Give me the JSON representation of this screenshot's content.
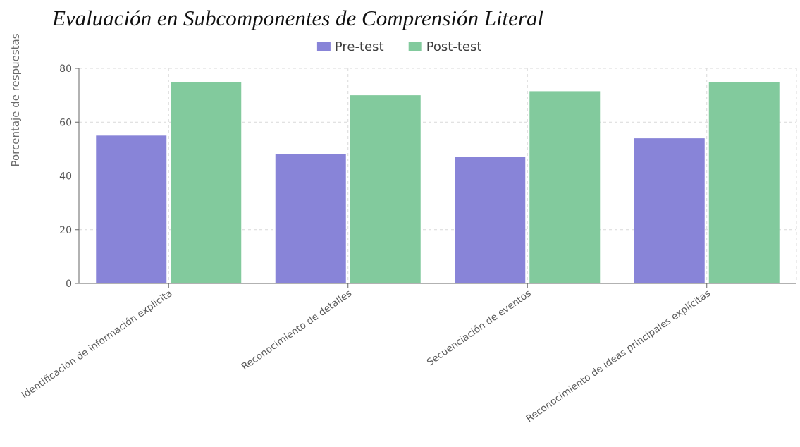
{
  "chart_data": {
    "type": "bar",
    "title": "Evaluación en Subcomponentes de Comprensión Literal",
    "xlabel": "",
    "ylabel": "Porcentaje de respuestas",
    "ylim": [
      0,
      80
    ],
    "yticks": [
      0,
      20,
      40,
      60,
      80
    ],
    "grid": true,
    "legend_position": "top-center",
    "categories": [
      "Identificación de información explícita",
      "Reconocimiento de detalles",
      "Secuenciación de eventos",
      "Reconocimiento de ideas principales explícitas"
    ],
    "series": [
      {
        "name": "Pre-test",
        "color": "#8884d8",
        "values": [
          55,
          48,
          47,
          54
        ]
      },
      {
        "name": "Post-test",
        "color": "#82ca9d",
        "values": [
          75,
          70,
          71.5,
          75
        ]
      }
    ]
  }
}
